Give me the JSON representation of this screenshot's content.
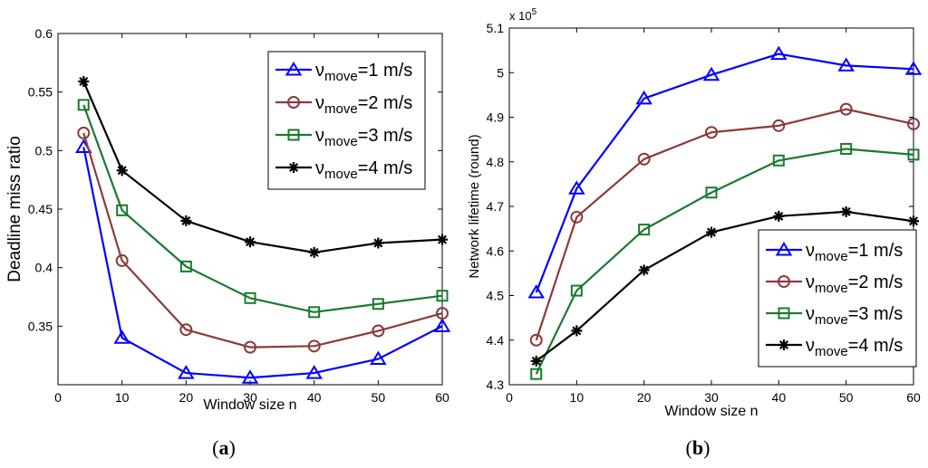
{
  "chart_data": [
    {
      "type": "line",
      "caption_letter": "a",
      "xlabel": "Window size n",
      "ylabel": "Deadline miss ratio",
      "xlim": [
        0,
        60
      ],
      "ylim": [
        0.3,
        0.6
      ],
      "xticks": [
        0,
        10,
        20,
        30,
        40,
        50,
        60
      ],
      "yticks": [
        0.35,
        0.4,
        0.45,
        0.5,
        0.55,
        0.6
      ],
      "ytick_labels": [
        "0.35",
        "0.4",
        "0.45",
        "0.5",
        "0.55",
        "0.6"
      ],
      "legend_position": "top-right",
      "x": [
        4,
        10,
        20,
        30,
        40,
        50,
        60
      ],
      "series": [
        {
          "name": "1 m/s",
          "color": "#0000ff",
          "marker": "triangle",
          "values": [
            0.503,
            0.34,
            0.31,
            0.306,
            0.31,
            0.322,
            0.35
          ]
        },
        {
          "name": "2 m/s",
          "color": "#8b3a3a",
          "marker": "circle",
          "values": [
            0.515,
            0.406,
            0.347,
            0.332,
            0.333,
            0.346,
            0.361
          ]
        },
        {
          "name": "3 m/s",
          "color": "#1a7a2e",
          "marker": "square",
          "values": [
            0.539,
            0.449,
            0.401,
            0.374,
            0.362,
            0.369,
            0.376
          ]
        },
        {
          "name": "4 m/s",
          "color": "#000000",
          "marker": "star",
          "values": [
            0.559,
            0.483,
            0.44,
            0.422,
            0.413,
            0.421,
            0.424
          ]
        }
      ]
    },
    {
      "type": "line",
      "caption_letter": "b",
      "xlabel": "Window size n",
      "ylabel": "Network lifetime (round)",
      "scale_multiplier": "x 10",
      "scale_exponent": "5",
      "xlim": [
        0,
        60
      ],
      "ylim": [
        4.3,
        5.1
      ],
      "xticks": [
        0,
        10,
        20,
        30,
        40,
        50,
        60
      ],
      "yticks": [
        4.3,
        4.4,
        4.5,
        4.6,
        4.7,
        4.8,
        4.9,
        5,
        5.1
      ],
      "ytick_labels": [
        "4.3",
        "4.4",
        "4.5",
        "4.6",
        "4.7",
        "4.8",
        "4.9",
        "5",
        "5.1"
      ],
      "legend_position": "bottom-right",
      "x": [
        4,
        10,
        20,
        30,
        40,
        50,
        60
      ],
      "series": [
        {
          "name": "1 m/s",
          "color": "#0000ff",
          "marker": "triangle",
          "values": [
            4.507,
            4.74,
            4.942,
            4.995,
            5.042,
            5.016,
            5.008
          ]
        },
        {
          "name": "2 m/s",
          "color": "#8b3a3a",
          "marker": "circle",
          "values": [
            4.4,
            4.676,
            4.806,
            4.866,
            4.881,
            4.918,
            4.885
          ]
        },
        {
          "name": "3 m/s",
          "color": "#1a7a2e",
          "marker": "square",
          "values": [
            4.324,
            4.511,
            4.648,
            4.731,
            4.803,
            4.829,
            4.816
          ]
        },
        {
          "name": "4 m/s",
          "color": "#000000",
          "marker": "star",
          "values": [
            4.353,
            4.421,
            4.557,
            4.642,
            4.678,
            4.688,
            4.667
          ]
        }
      ]
    }
  ],
  "legend": {
    "symbol": "ν",
    "subscript": "move",
    "equals": "="
  }
}
